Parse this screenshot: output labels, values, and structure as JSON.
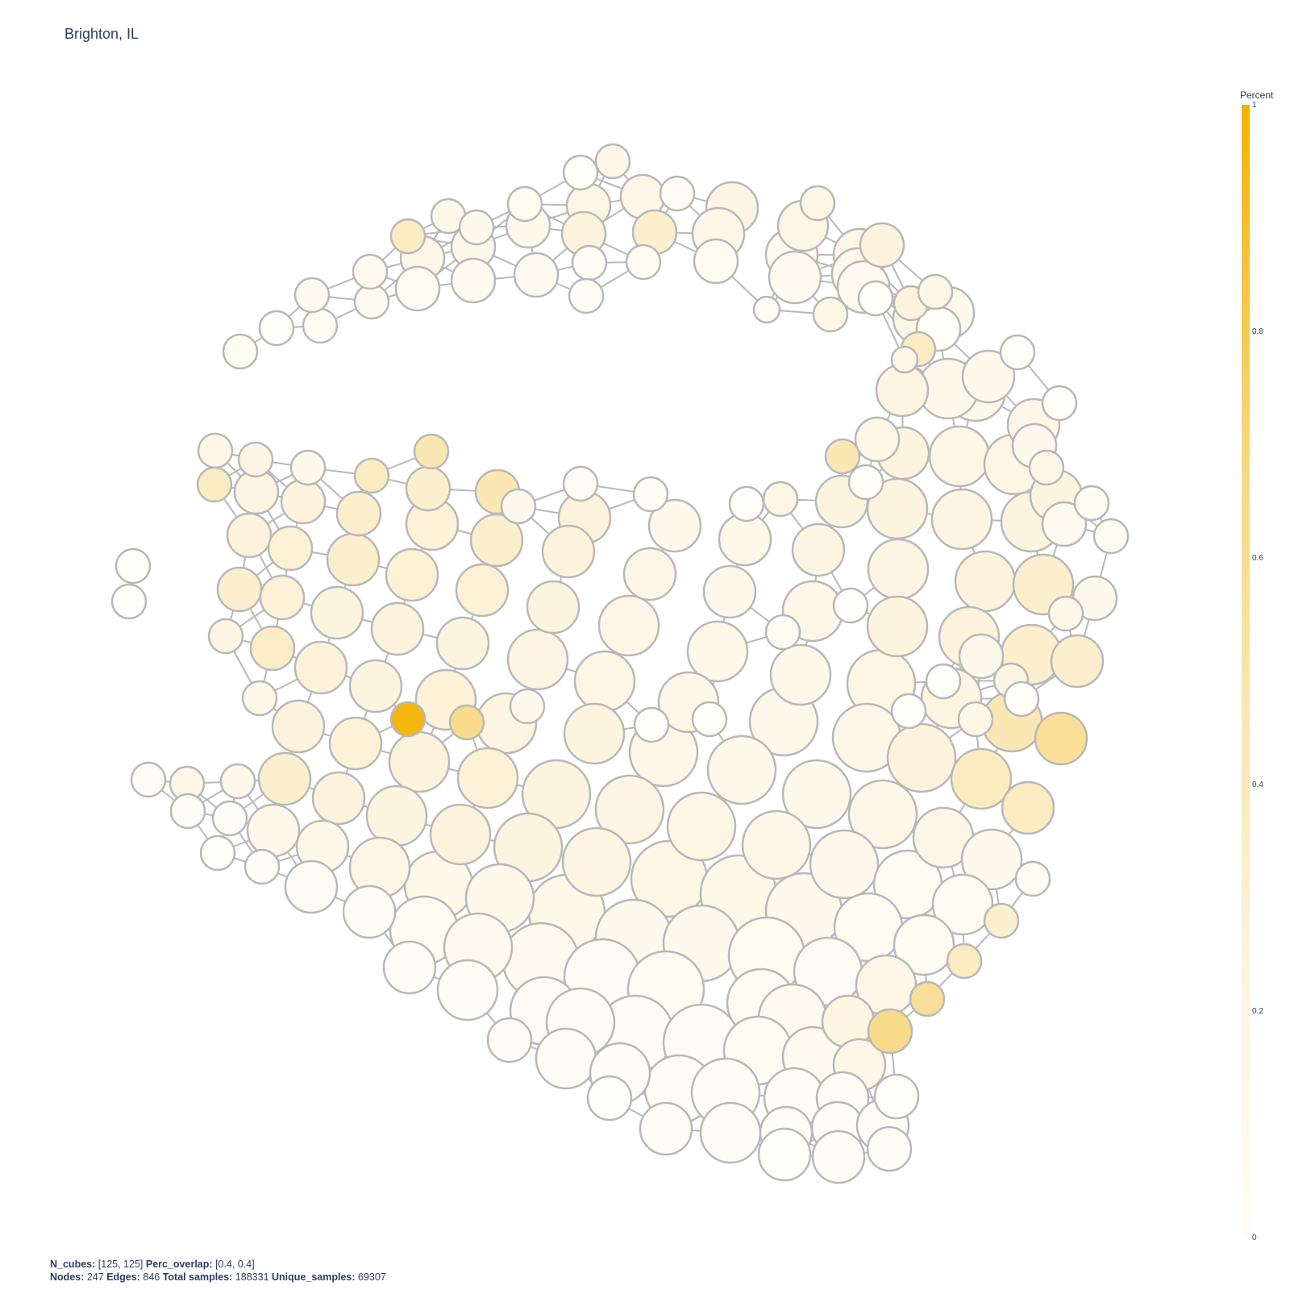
{
  "title": "Brighton, IL",
  "colorbar": {
    "title": "Percent",
    "ticks": [
      "1",
      "0.8",
      "0.6",
      "0.4",
      "0.2",
      "0"
    ],
    "color_high": "#f2b200",
    "color_low": "#fffdf8"
  },
  "footer": {
    "n_cubes_label": "N_cubes:",
    "n_cubes_value": "[125, 125]",
    "perc_overlap_label": "Perc_overlap:",
    "perc_overlap_value": "[0.4, 0.4]",
    "nodes_label": "Nodes:",
    "nodes_value": "247",
    "edges_label": "Edges:",
    "edges_value": "846",
    "total_samples_label": "Total samples:",
    "total_samples_value": "188331",
    "unique_samples_label": "Unique_samples:",
    "unique_samples_value": "69307"
  },
  "graph_style": {
    "edge_color": "#b8b8b8",
    "node_border_color": "#b8b8b8"
  }
}
